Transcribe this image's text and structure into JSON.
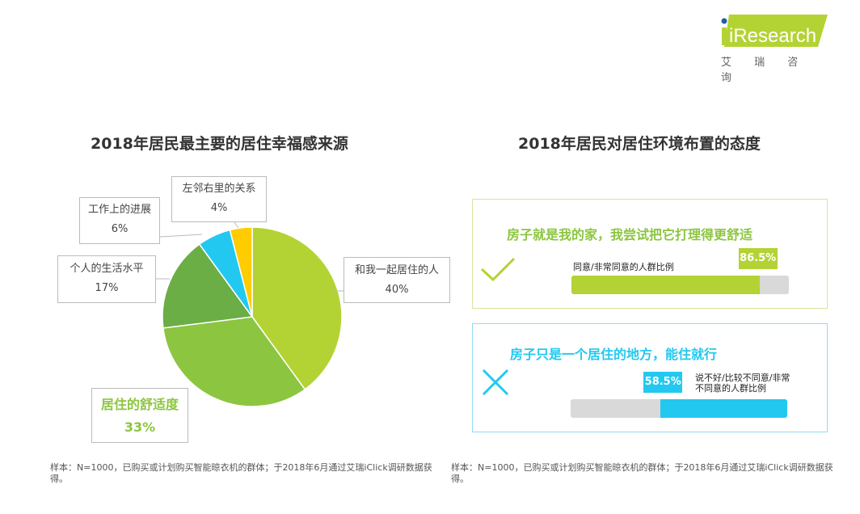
{
  "logo": {
    "brand": "iResearch",
    "cn": "艾 瑞 咨 询"
  },
  "chart_data": [
    {
      "type": "pie",
      "title": "2018年居民最主要的居住幸福感来源",
      "categories": [
        "和我一起居住的人",
        "居住的舒适度",
        "个人的生活水平",
        "工作上的进展",
        "左邻右里的关系"
      ],
      "values": [
        40,
        33,
        17,
        6,
        4
      ],
      "labels": [
        "40%",
        "33%",
        "17%",
        "6%",
        "4%"
      ],
      "colors": [
        "#b3d334",
        "#8cc540",
        "#6aae45",
        "#23c8f0",
        "#ffcc00"
      ]
    },
    {
      "type": "bar",
      "title": "2018年居民对居住环境布置的态度",
      "series": [
        {
          "statement": "房子就是我的家，我尝试把它打理得更舒适",
          "name": "同意/非常同意的人群比例",
          "value": 86.5,
          "label": "86.5%",
          "color": "#b3d334"
        },
        {
          "statement": "房子只是一个居住的地方，能住就行",
          "name": "说不好/比较不同意/非常不同意的人群比例",
          "value": 58.5,
          "label": "58.5%",
          "color": "#23c8f0"
        }
      ],
      "ylim": [
        0,
        100
      ]
    }
  ],
  "notes": {
    "left": "样本：N=1000，已购买或计划购买智能晾衣机的群体；于2018年6月通过艾瑞iClick调研数据获得。",
    "right": "样本：N=1000，已购买或计划购买智能晾衣机的群体；于2018年6月通过艾瑞iClick调研数据获得。"
  }
}
